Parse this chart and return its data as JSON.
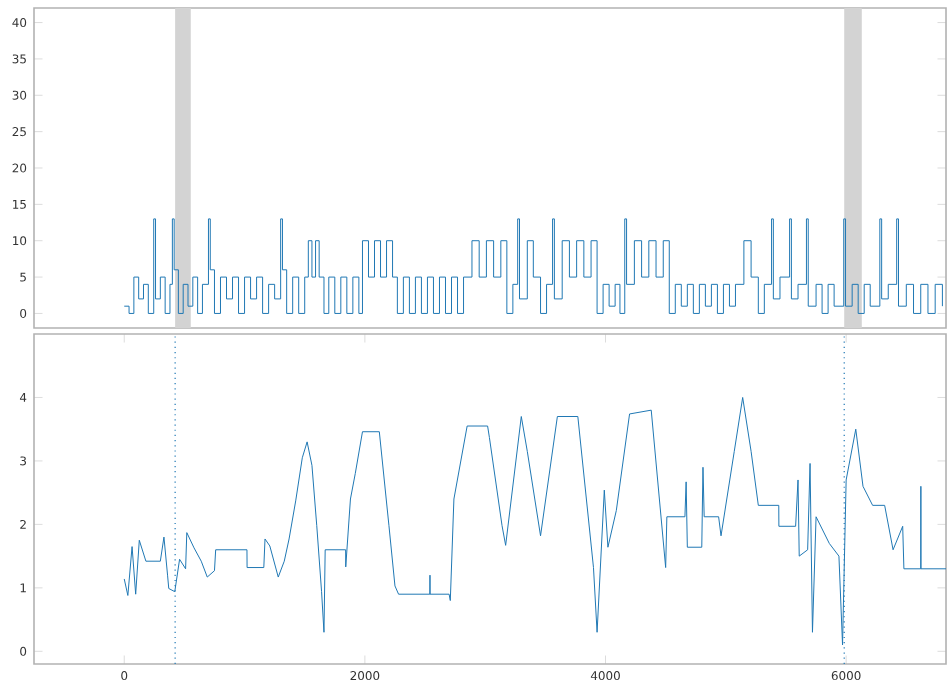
{
  "chart_data": [
    {
      "type": "step",
      "color": "#1f77b4",
      "xlim": [
        -750,
        6830
      ],
      "ylim": [
        -2,
        42
      ],
      "yticks": [
        0,
        5,
        10,
        15,
        20,
        25,
        30,
        35,
        40
      ],
      "tick_labels": "y",
      "grid": false,
      "bands": [
        {
          "axis": "x",
          "from": 423,
          "to": 553,
          "color": "#d3d3d3"
        },
        {
          "axis": "x",
          "from": 5984,
          "to": 6130,
          "color": "#d3d3d3"
        }
      ],
      "x": [
        0,
        40,
        80,
        120,
        160,
        200,
        245,
        260,
        300,
        340,
        380,
        400,
        415,
        450,
        490,
        530,
        570,
        610,
        650,
        700,
        715,
        750,
        800,
        850,
        900,
        950,
        1000,
        1050,
        1100,
        1150,
        1200,
        1250,
        1300,
        1315,
        1350,
        1400,
        1450,
        1500,
        1530,
        1560,
        1590,
        1620,
        1660,
        1700,
        1750,
        1800,
        1850,
        1900,
        1950,
        1980,
        2030,
        2080,
        2130,
        2180,
        2230,
        2270,
        2320,
        2370,
        2420,
        2470,
        2520,
        2570,
        2620,
        2670,
        2720,
        2770,
        2820,
        2890,
        2950,
        3010,
        3070,
        3130,
        3180,
        3230,
        3270,
        3285,
        3350,
        3400,
        3460,
        3510,
        3560,
        3575,
        3640,
        3700,
        3760,
        3820,
        3880,
        3930,
        3980,
        4030,
        4080,
        4120,
        4160,
        4175,
        4240,
        4300,
        4360,
        4420,
        4480,
        4530,
        4580,
        4630,
        4680,
        4730,
        4780,
        4830,
        4880,
        4930,
        4980,
        5030,
        5080,
        5150,
        5210,
        5270,
        5320,
        5380,
        5395,
        5450,
        5530,
        5545,
        5600,
        5670,
        5685,
        5750,
        5800,
        5850,
        5900,
        5980,
        5995,
        6050,
        6100,
        6150,
        6200,
        6280,
        6295,
        6350,
        6420,
        6435,
        6500,
        6560,
        6620,
        6680,
        6740,
        6800
      ],
      "values": [
        1,
        0,
        5,
        2,
        4,
        0,
        13,
        2,
        5,
        0,
        4,
        13,
        6,
        0,
        4,
        1,
        5,
        0,
        4,
        13,
        6,
        0,
        5,
        2,
        5,
        0,
        5,
        2,
        5,
        0,
        4,
        2,
        13,
        6,
        0,
        5,
        0,
        5,
        10,
        5,
        10,
        5,
        0,
        5,
        0,
        5,
        0,
        5,
        0,
        10,
        5,
        10,
        5,
        10,
        5,
        0,
        5,
        0,
        5,
        0,
        5,
        0,
        5,
        0,
        5,
        0,
        5,
        10,
        5,
        10,
        5,
        10,
        0,
        4,
        13,
        2,
        10,
        5,
        0,
        4,
        13,
        2,
        10,
        5,
        10,
        5,
        10,
        0,
        4,
        1,
        4,
        0,
        13,
        4,
        10,
        5,
        10,
        5,
        10,
        0,
        4,
        1,
        4,
        0,
        4,
        1,
        4,
        0,
        4,
        1,
        4,
        10,
        5,
        0,
        4,
        13,
        2,
        5,
        13,
        2,
        4,
        13,
        1,
        4,
        0,
        4,
        1,
        13,
        1,
        4,
        0,
        4,
        1,
        13,
        2,
        4,
        13,
        1,
        4,
        0,
        4,
        0,
        4,
        1
      ]
    },
    {
      "type": "line",
      "color": "#1f77b4",
      "xlim": [
        -750,
        6830
      ],
      "xticks": [
        0,
        2000,
        4000,
        6000
      ],
      "ylim": [
        -0.2,
        5.0
      ],
      "yticks": [
        0,
        1,
        2,
        3,
        4
      ],
      "grid": false,
      "ref_lines": [
        {
          "axis": "x",
          "value": 423,
          "color": "#1f77b4",
          "line_style": "dotted"
        },
        {
          "axis": "x",
          "value": 5984,
          "color": "#1f77b4",
          "line_style": "dotted"
        }
      ],
      "x": [
        0,
        30,
        65,
        95,
        125,
        180,
        300,
        330,
        360,
        370,
        420,
        460,
        510,
        520,
        580,
        640,
        690,
        750,
        760,
        1020,
        1021,
        1160,
        1170,
        1210,
        1280,
        1330,
        1370,
        1425,
        1480,
        1520,
        1560,
        1600,
        1640,
        1660,
        1670,
        1840,
        1841,
        1880,
        1920,
        1980,
        2120,
        2200,
        2250,
        2280,
        2540,
        2541,
        2542,
        2700,
        2710,
        2740,
        2850,
        3020,
        3035,
        3140,
        3170,
        3300,
        3350,
        3460,
        3600,
        3770,
        3900,
        3930,
        3990,
        4020,
        4090,
        4200,
        4380,
        4500,
        4510,
        4660,
        4670,
        4680,
        4800,
        4810,
        4820,
        4940,
        4960,
        5070,
        5140,
        5210,
        5270,
        5440,
        5441,
        5580,
        5600,
        5610,
        5680,
        5700,
        5720,
        5750,
        5860,
        5940,
        5970,
        6000,
        6080,
        6140,
        6220,
        6320,
        6390,
        6470,
        6480,
        6620,
        6621,
        6622,
        6830
      ],
      "values": [
        1.14,
        0.88,
        1.65,
        0.9,
        1.75,
        1.42,
        1.42,
        1.8,
        1.2,
        0.99,
        0.94,
        1.45,
        1.3,
        1.87,
        1.63,
        1.42,
        1.17,
        1.27,
        1.6,
        1.6,
        1.32,
        1.32,
        1.77,
        1.66,
        1.17,
        1.42,
        1.77,
        2.37,
        3.05,
        3.3,
        2.93,
        1.98,
        0.94,
        0.3,
        1.6,
        1.6,
        1.33,
        2.4,
        2.8,
        3.46,
        3.46,
        1.98,
        1.03,
        0.9,
        0.9,
        1.2,
        0.9,
        0.9,
        0.8,
        2.4,
        3.55,
        3.55,
        3.37,
        1.98,
        1.67,
        3.7,
        3.15,
        1.82,
        3.7,
        3.7,
        1.32,
        0.3,
        2.54,
        1.64,
        2.22,
        3.74,
        3.8,
        1.32,
        2.12,
        2.12,
        2.67,
        1.64,
        1.64,
        2.9,
        2.12,
        2.12,
        1.82,
        3.15,
        4.0,
        3.15,
        2.3,
        2.3,
        1.97,
        1.97,
        2.7,
        1.5,
        1.6,
        2.96,
        0.3,
        2.12,
        1.7,
        1.5,
        0.1,
        2.7,
        3.5,
        2.6,
        2.3,
        2.3,
        1.6,
        1.97,
        1.3,
        1.3,
        2.6,
        1.3,
        1.3
      ]
    }
  ]
}
